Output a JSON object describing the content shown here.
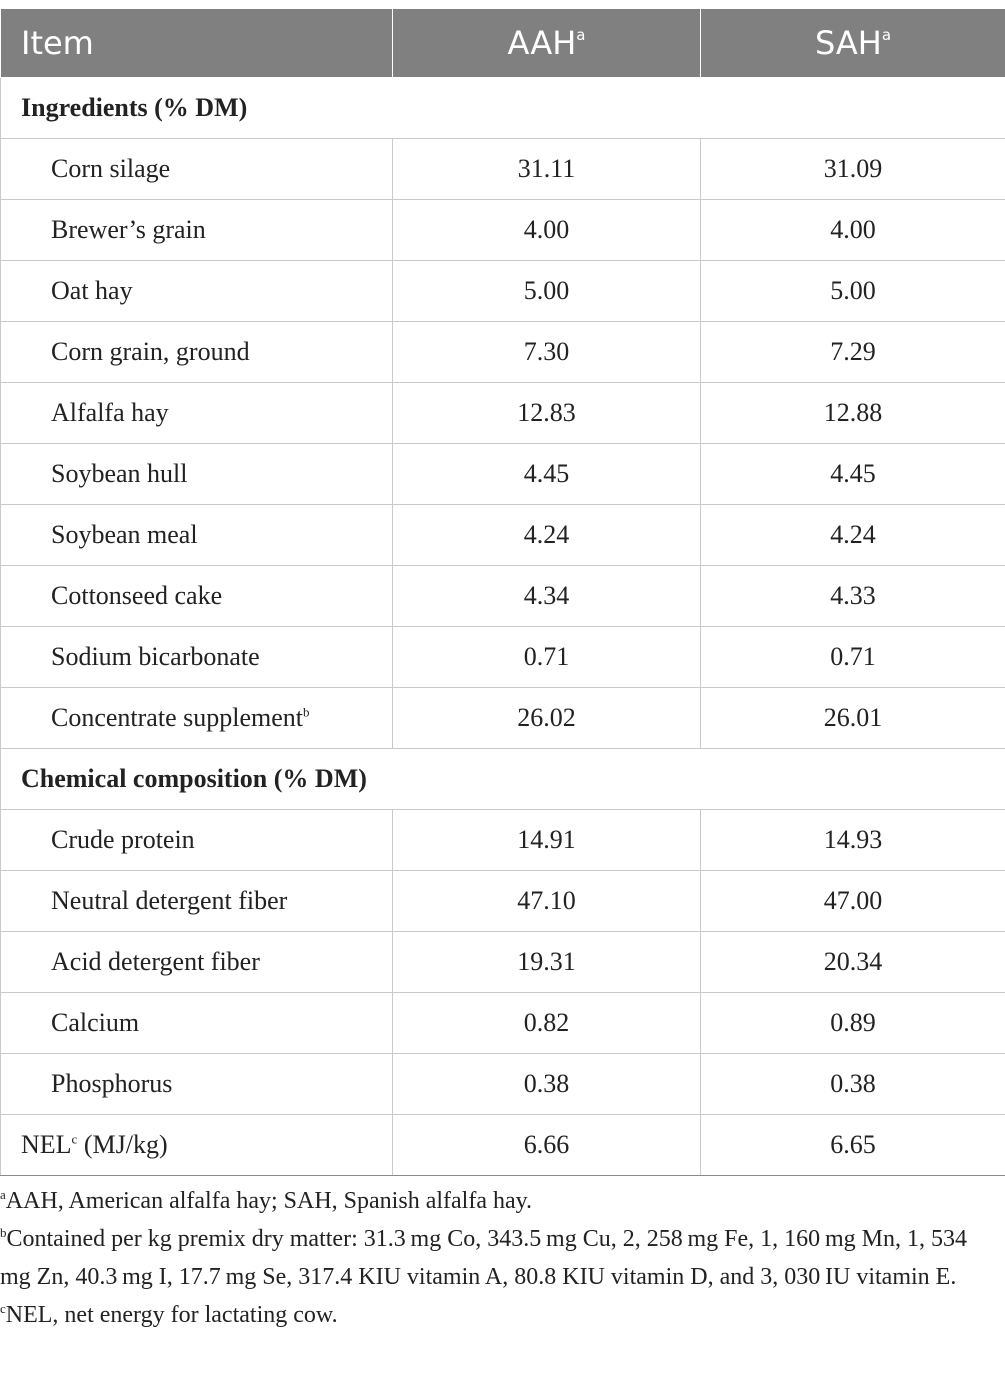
{
  "header": {
    "item": "Item",
    "col1": "AAH",
    "col1_sup": "a",
    "col2": "SAH",
    "col2_sup": "a"
  },
  "sections": [
    {
      "title": "Ingredients (% DM)",
      "rows": [
        {
          "label": "Corn silage",
          "aah": "31.11",
          "sah": "31.09"
        },
        {
          "label": "Brewer’s grain",
          "aah": "4.00",
          "sah": "4.00"
        },
        {
          "label": "Oat hay",
          "aah": "5.00",
          "sah": "5.00"
        },
        {
          "label": "Corn grain, ground",
          "aah": "7.30",
          "sah": "7.29"
        },
        {
          "label": "Alfalfa hay",
          "aah": "12.83",
          "sah": "12.88"
        },
        {
          "label": "Soybean hull",
          "aah": "4.45",
          "sah": "4.45"
        },
        {
          "label": "Soybean meal",
          "aah": "4.24",
          "sah": "4.24"
        },
        {
          "label": "Cottonseed cake",
          "aah": "4.34",
          "sah": "4.33"
        },
        {
          "label": "Sodium bicarbonate",
          "aah": "0.71",
          "sah": "0.71"
        },
        {
          "label": "Concentrate supplement",
          "sup": "b",
          "aah": "26.02",
          "sah": "26.01"
        }
      ]
    },
    {
      "title": "Chemical composition (% DM)",
      "rows": [
        {
          "label": "Crude protein",
          "aah": "14.91",
          "sah": "14.93"
        },
        {
          "label": "Neutral detergent fiber",
          "aah": "47.10",
          "sah": "47.00"
        },
        {
          "label": "Acid detergent fiber",
          "aah": "19.31",
          "sah": "20.34"
        },
        {
          "label": "Calcium",
          "aah": "0.82",
          "sah": "0.89"
        },
        {
          "label": "Phosphorus",
          "aah": "0.38",
          "sah": "0.38"
        }
      ]
    }
  ],
  "nel_row": {
    "label": "NEL",
    "sup": "c",
    "unit": " (MJ/kg)",
    "aah": "6.66",
    "sah": "6.65"
  },
  "footnotes": [
    {
      "mark": "a",
      "text": "AAH, American alfalfa hay; SAH, Spanish alfalfa hay."
    },
    {
      "mark": "b",
      "text": "Contained per kg premix dry matter: 31.3 mg Co, 343.5 mg Cu, 2, 258 mg Fe, 1, 160 mg Mn, 1, 534 mg Zn, 40.3 mg I, 17.7 mg Se, 317.4 KIU vitamin A, 80.8 KIU vitamin D, and 3, 030 IU vitamin E."
    },
    {
      "mark": "c",
      "text": "NEL, net energy for lactating cow."
    }
  ]
}
